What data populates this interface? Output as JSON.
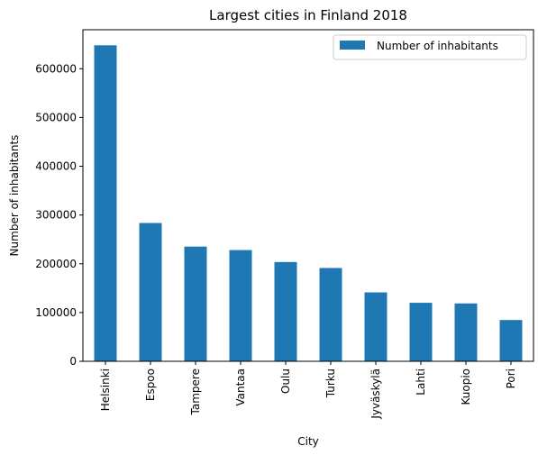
{
  "chart_data": {
    "type": "bar",
    "title": "Largest cities in Finland 2018",
    "xlabel": "City",
    "ylabel": "Number of inhabitants",
    "categories": [
      "Helsinki",
      "Espoo",
      "Tampere",
      "Vantaa",
      "Oulu",
      "Turku",
      "Jyväskylä",
      "Lahti",
      "Kuopio",
      "Pori"
    ],
    "series": [
      {
        "name": "Number of inhabitants",
        "color": "#1f77b4",
        "values": [
          648042,
          283632,
          235239,
          228166,
          203567,
          191331,
          141305,
          119984,
          118664,
          84648
        ]
      }
    ],
    "ylim": [
      0,
      680000
    ],
    "yticks": [
      0,
      100000,
      200000,
      300000,
      400000,
      500000,
      600000
    ],
    "legend_position": "top-right",
    "grid": false
  }
}
